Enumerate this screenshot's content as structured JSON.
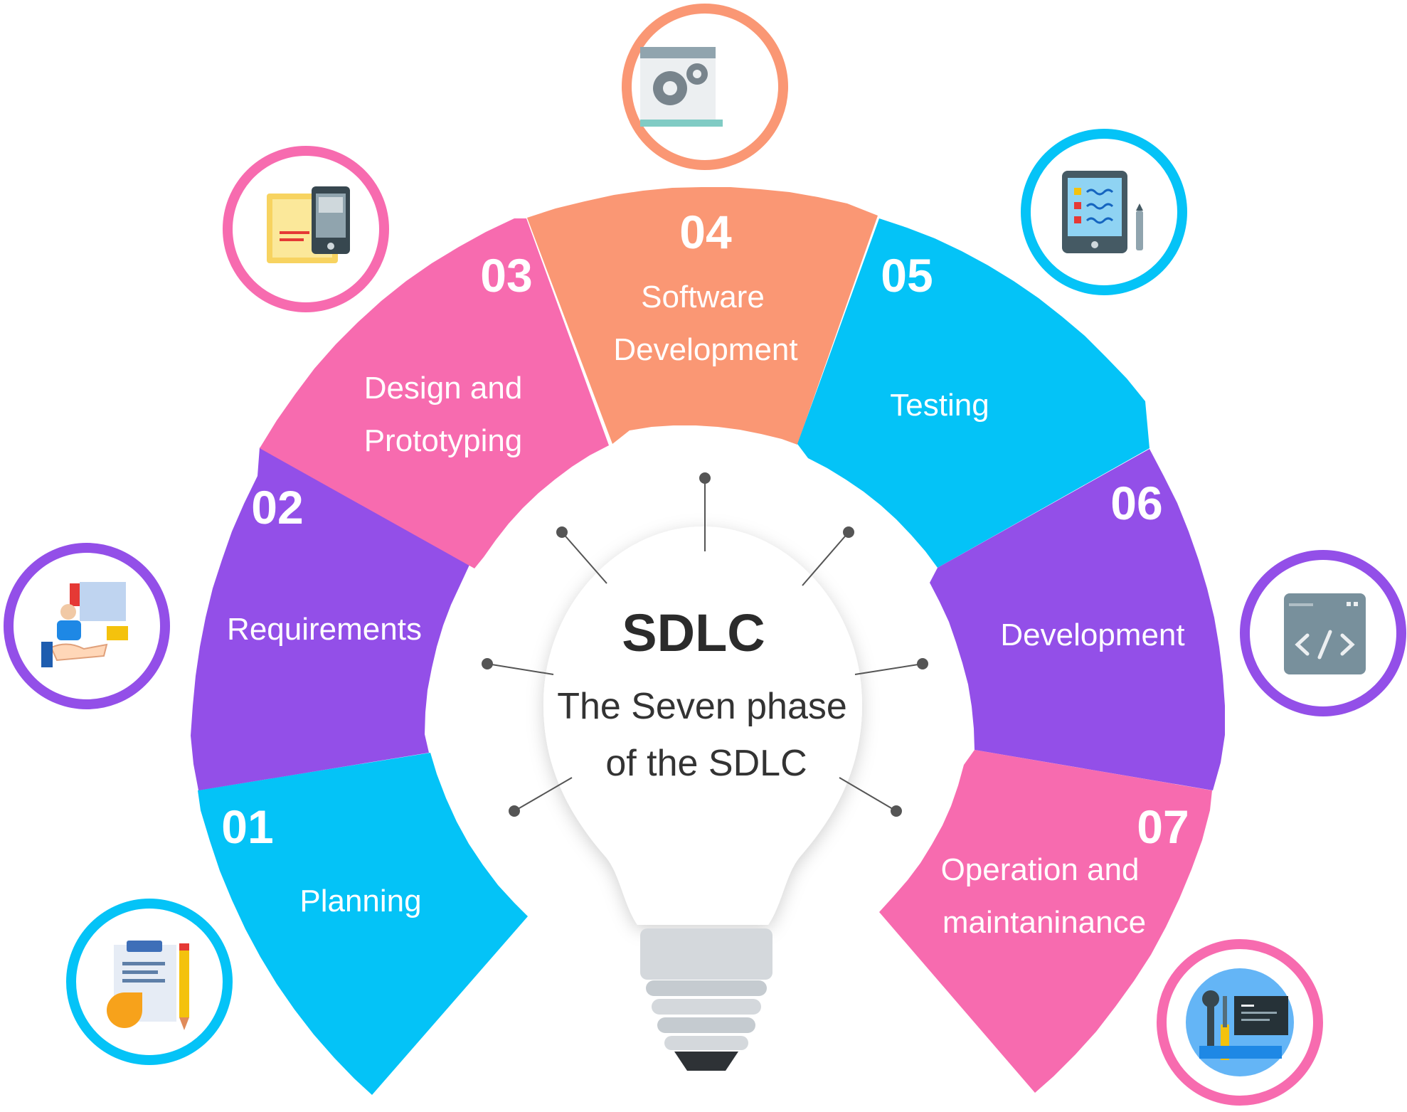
{
  "center": {
    "title": "SDLC",
    "subtitle_line1": "The Seven phase",
    "subtitle_line2": "of the SDLC"
  },
  "phases": [
    {
      "number": "01",
      "label_line1": "Planning",
      "label_line2": "",
      "color": "#04C3F7",
      "icon": "planning-icon"
    },
    {
      "number": "02",
      "label_line1": "Requirements",
      "label_line2": "",
      "color": "#934FE8",
      "icon": "requirements-icon"
    },
    {
      "number": "03",
      "label_line1": "Design and",
      "label_line2": "Prototyping",
      "color": "#F76BAF",
      "icon": "design-prototyping-icon"
    },
    {
      "number": "04",
      "label_line1": "Software",
      "label_line2": "Development",
      "color": "#FA9774",
      "icon": "software-development-icon"
    },
    {
      "number": "05",
      "label_line1": "Testing",
      "label_line2": "",
      "color": "#04C3F7",
      "icon": "testing-icon"
    },
    {
      "number": "06",
      "label_line1": "Development",
      "label_line2": "",
      "color": "#934FE8",
      "icon": "code-icon"
    },
    {
      "number": "07",
      "label_line1": "Operation and",
      "label_line2": "maintaninance",
      "color": "#F76BAF",
      "icon": "maintenance-tools-icon"
    }
  ]
}
